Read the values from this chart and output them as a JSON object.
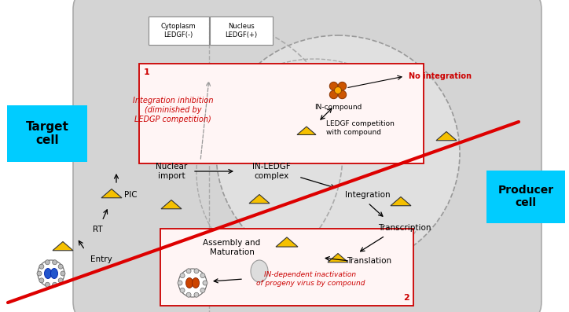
{
  "bg_color": "#ffffff",
  "cell_fill": "#d4d4d4",
  "nucleus_fill": "#e0e0e0",
  "target_cell_color": "#00ccff",
  "producer_cell_color": "#00ccff",
  "red_color": "#cc0000",
  "red_line_color": "#dd0000",
  "cytoplasm_label": "Cytoplasm\nLEDGF(-)",
  "nucleus_label": "Nucleus\nLEDGF(+)",
  "target_cell_label": "Target\ncell",
  "producer_cell_label": "Producer\ncell",
  "box1_label": "1",
  "box2_label": "2",
  "integration_inhibition_text": "Integration inhibition\n(diminished by\nLEDGP competition)",
  "no_integration_text": "No integration",
  "in_compound_text": "IN-compound",
  "ledgf_competition_text": "LEDGF competition\nwith compound",
  "in_ledgf_text": "IN-LEDGF\ncomplex",
  "nuclear_import_text": "Nuclear\nimport",
  "integration_text": "Integration",
  "transcription_text": "Transcription",
  "translation_text": "Translation",
  "assembly_text": "Assembly and\nMaturation",
  "indep_text": "IN-dependent inactivation\nof progeny virus by compound",
  "pic_text": "PIC",
  "rt_text": "RT",
  "entry_text": "Entry"
}
